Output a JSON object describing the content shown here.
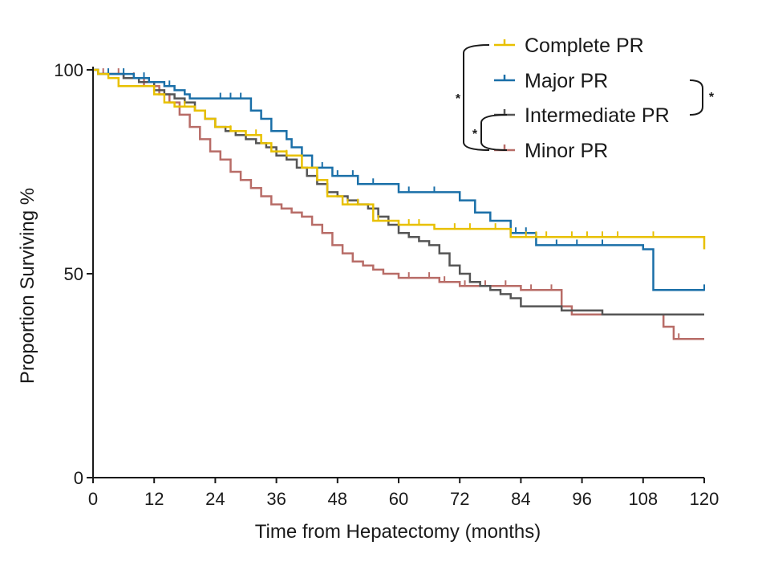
{
  "chart_data": {
    "type": "line",
    "subtype": "kaplan-meier step",
    "title": "",
    "xlabel": "Time from Hepatectomy (months)",
    "ylabel": "Proportion Surviving %",
    "xlim": [
      0,
      120
    ],
    "ylim": [
      0,
      100
    ],
    "xticks": [
      0,
      12,
      24,
      36,
      48,
      60,
      72,
      84,
      96,
      108,
      120
    ],
    "yticks": [
      0,
      50,
      100
    ],
    "grid": false,
    "legend_position": "top-right",
    "significance_marker": "*",
    "comparisons": [
      {
        "groups": [
          "Complete PR",
          "Minor PR"
        ],
        "label": "*"
      },
      {
        "groups": [
          "Intermediate PR",
          "Minor PR"
        ],
        "label": "*"
      },
      {
        "groups": [
          "Major PR",
          "Intermediate PR"
        ],
        "label": "*"
      }
    ],
    "series": [
      {
        "name": "Complete PR",
        "color": "#e8c000",
        "x": [
          0,
          1,
          3,
          5,
          9,
          12,
          14,
          16,
          20,
          22,
          24,
          27,
          30,
          33,
          35,
          38,
          41,
          44,
          46,
          49,
          55,
          60,
          67,
          82,
          120
        ],
        "y": [
          100,
          99,
          98,
          96,
          96,
          94,
          92,
          91,
          90,
          88,
          86,
          85,
          84,
          82,
          80,
          79,
          76,
          73,
          69,
          67,
          63,
          62,
          61,
          59,
          56
        ],
        "censor_x": [
          18,
          27,
          32,
          38,
          44,
          50,
          52,
          56,
          62,
          64,
          71,
          74,
          79,
          85,
          87,
          89,
          94,
          97,
          100,
          103,
          110
        ]
      },
      {
        "name": "Major PR",
        "color": "#1a6fa8",
        "x": [
          0,
          1,
          4,
          8,
          11,
          14,
          16,
          18,
          19,
          31,
          33,
          35,
          38,
          39,
          41,
          43,
          47,
          52,
          60,
          72,
          75,
          78,
          82,
          87,
          108,
          110,
          120
        ],
        "y": [
          100,
          99,
          99,
          98,
          97,
          96,
          95,
          94,
          93,
          90,
          88,
          85,
          83,
          81,
          79,
          76,
          74,
          72,
          70,
          68,
          65,
          63,
          60,
          57,
          56,
          46,
          46
        ],
        "censor_x": [
          3,
          6,
          10,
          15,
          25,
          27,
          29,
          45,
          48,
          51,
          55,
          62,
          67,
          75,
          83,
          85,
          91,
          95,
          100,
          120
        ]
      },
      {
        "name": "Intermediate PR",
        "color": "#555555",
        "x": [
          0,
          1,
          3,
          6,
          9,
          12,
          14,
          16,
          18,
          20,
          22,
          24,
          26,
          28,
          30,
          32,
          34,
          36,
          38,
          40,
          42,
          44,
          46,
          48,
          50,
          52,
          54,
          56,
          58,
          60,
          62,
          64,
          66,
          68,
          70,
          72,
          74,
          76,
          78,
          80,
          82,
          84,
          92,
          100,
          120
        ],
        "y": [
          100,
          99,
          99,
          98,
          97,
          95,
          94,
          93,
          92,
          90,
          88,
          86,
          85,
          84,
          83,
          82,
          81,
          79,
          78,
          76,
          74,
          72,
          70,
          69,
          68,
          67,
          66,
          64,
          62,
          60,
          59,
          58,
          57,
          55,
          52,
          50,
          48,
          47,
          46,
          45,
          44,
          42,
          41,
          40,
          40
        ]
      },
      {
        "name": "Minor PR",
        "color": "#b86c67",
        "x": [
          0,
          1,
          3,
          6,
          10,
          13,
          15,
          17,
          19,
          21,
          23,
          25,
          27,
          29,
          31,
          33,
          35,
          37,
          39,
          41,
          43,
          45,
          47,
          49,
          51,
          53,
          55,
          57,
          60,
          68,
          72,
          80,
          84,
          92,
          94,
          100,
          112,
          114,
          120
        ],
        "y": [
          100,
          99,
          99,
          98,
          96,
          94,
          92,
          89,
          86,
          83,
          80,
          78,
          75,
          73,
          71,
          69,
          67,
          66,
          65,
          64,
          62,
          60,
          57,
          55,
          53,
          52,
          51,
          50,
          49,
          48,
          47,
          47,
          46,
          42,
          40,
          40,
          37,
          34,
          34
        ],
        "censor_x": [
          2,
          5,
          8,
          62,
          66,
          69,
          73,
          77,
          81,
          86,
          90,
          115
        ]
      }
    ]
  }
}
